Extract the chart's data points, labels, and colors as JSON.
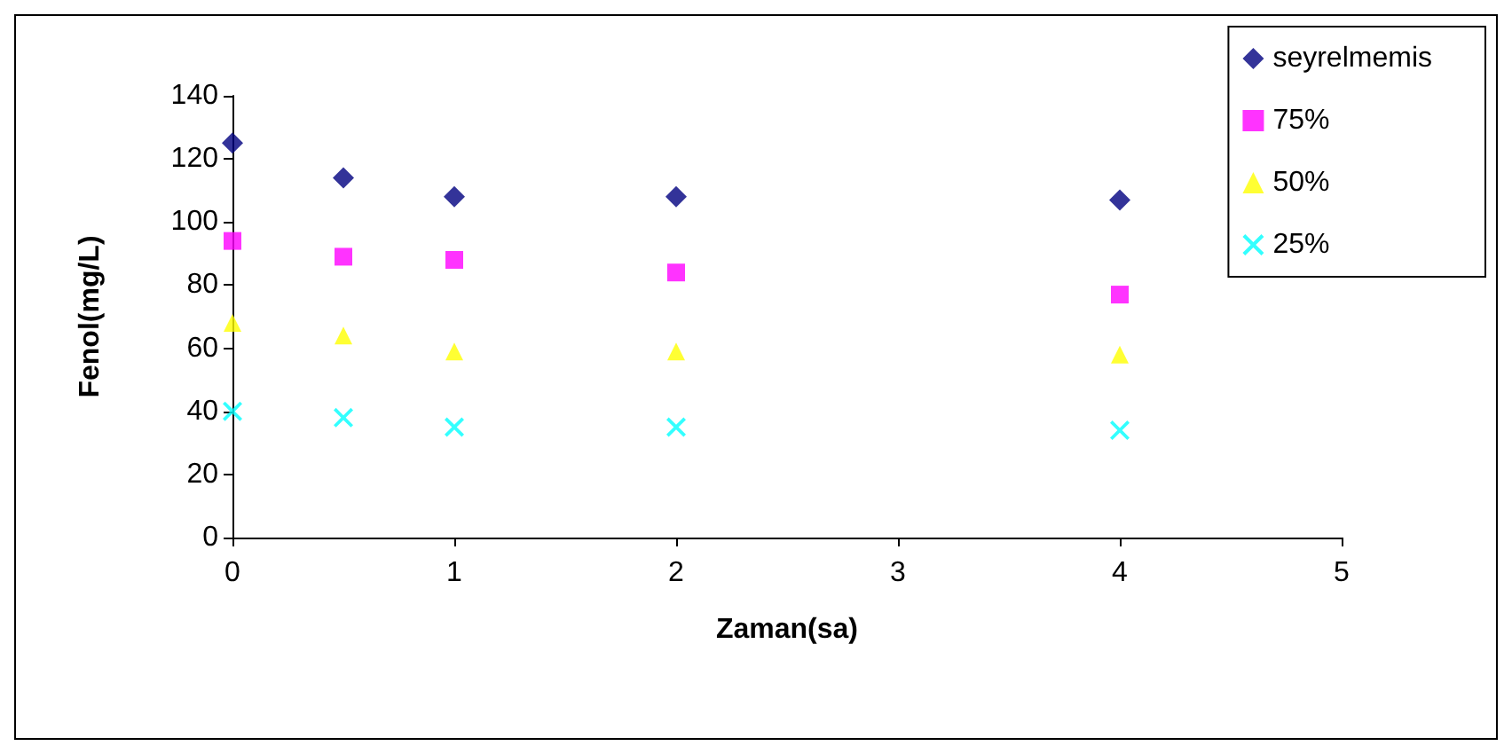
{
  "chart_data": {
    "type": "scatter",
    "xlabel": "Zaman(sa)",
    "ylabel": "Fenol(mg/L)",
    "x": [
      0,
      0.5,
      1,
      2,
      4
    ],
    "series": [
      {
        "name": "seyrelmemis",
        "color": "#000080",
        "marker": "diamond",
        "values": [
          125,
          114,
          108,
          108,
          107
        ]
      },
      {
        "name": "75%",
        "color": "#ff00ff",
        "marker": "square",
        "values": [
          94,
          89,
          88,
          84,
          77
        ]
      },
      {
        "name": "50%",
        "color": "#ffff00",
        "marker": "triangle",
        "values": [
          68,
          64,
          59,
          59,
          58
        ]
      },
      {
        "name": "25%",
        "color": "#00ffff",
        "marker": "cross",
        "values": [
          40,
          38,
          35,
          35,
          34
        ]
      }
    ],
    "xlim": [
      0,
      5
    ],
    "xticks": [
      0,
      1,
      2,
      3,
      4,
      5
    ],
    "ylim": [
      0,
      140
    ],
    "yticks": [
      0,
      20,
      40,
      60,
      80,
      100,
      120,
      140
    ],
    "grid": false,
    "legend": "top right"
  }
}
